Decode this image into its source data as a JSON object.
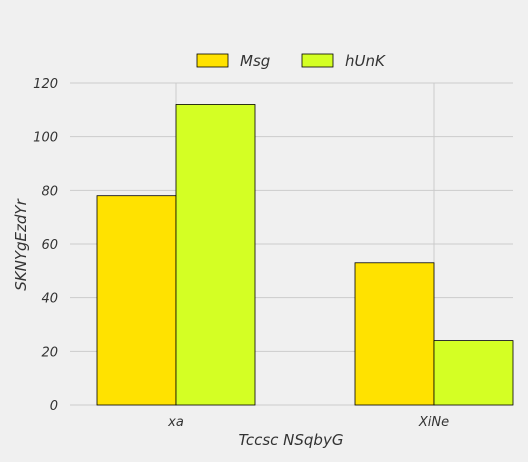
{
  "chart_data": {
    "type": "bar",
    "categories": [
      "xa",
      "XiNe"
    ],
    "series": [
      {
        "name": "Msg",
        "values": [
          78,
          53
        ],
        "color": "#ffe200"
      },
      {
        "name": "hUnK",
        "values": [
          112,
          24
        ],
        "color": "#d4ff24"
      }
    ],
    "xlabel": "Tccsc NSqbyG",
    "ylabel": "SKNYgEzdYr",
    "ylim": [
      0,
      120
    ],
    "yticks": [
      0,
      20,
      40,
      60,
      80,
      100,
      120
    ],
    "grid": true,
    "legend_position": "top-center"
  }
}
